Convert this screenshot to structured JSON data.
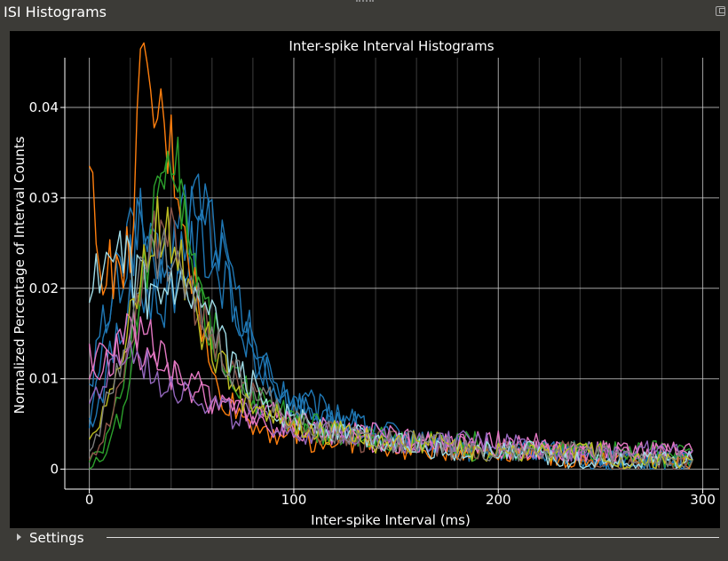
{
  "window": {
    "title": "ISI Histograms"
  },
  "settings": {
    "label": "Settings"
  },
  "chart_data": {
    "type": "line",
    "title": "Inter-spike Interval Histograms",
    "xlabel": "Inter-spike Interval (ms)",
    "ylabel": "Normalized Percentage of Interval Counts",
    "xlim": [
      -12,
      308
    ],
    "ylim": [
      -0.0022,
      0.0455
    ],
    "x_ticks": [
      0,
      100,
      200,
      300
    ],
    "y_ticks": [
      0,
      0.01,
      0.02,
      0.03,
      0.04
    ],
    "x_tick_labels": [
      "0",
      "100",
      "200",
      "300"
    ],
    "y_tick_labels": [
      "0",
      "0.01",
      "0.02",
      "0.03",
      "0.04"
    ],
    "grid": true,
    "legend": "none",
    "x": [
      0,
      5,
      10,
      15,
      20,
      25,
      30,
      35,
      40,
      45,
      50,
      55,
      60,
      65,
      70,
      75,
      80,
      85,
      90,
      95,
      100,
      110,
      120,
      130,
      140,
      150,
      160,
      170,
      180,
      190,
      200,
      210,
      220,
      230,
      240,
      250,
      260,
      270,
      280,
      290,
      295
    ],
    "series": [
      {
        "color": "#1f77b4",
        "values": [
          0.006,
          0.01,
          0.018,
          0.021,
          0.024,
          0.028,
          0.024,
          0.022,
          0.025,
          0.028,
          0.03,
          0.031,
          0.028,
          0.025,
          0.02,
          0.017,
          0.014,
          0.012,
          0.01,
          0.009,
          0.008,
          0.007,
          0.006,
          0.005,
          0.004,
          0.004,
          0.003,
          0.003,
          0.003,
          0.002,
          0.002,
          0.002,
          0.002,
          0.002,
          0.002,
          0.001,
          0.001,
          0.001,
          0.001,
          0.001,
          0.001
        ]
      },
      {
        "color": "#1f77b4",
        "values": [
          0.008,
          0.014,
          0.019,
          0.022,
          0.026,
          0.027,
          0.025,
          0.021,
          0.023,
          0.026,
          0.029,
          0.029,
          0.026,
          0.023,
          0.019,
          0.016,
          0.013,
          0.011,
          0.009,
          0.008,
          0.007,
          0.006,
          0.006,
          0.005,
          0.004,
          0.003,
          0.003,
          0.003,
          0.002,
          0.002,
          0.002,
          0.002,
          0.002,
          0.002,
          0.001,
          0.001,
          0.001,
          0.001,
          0.001,
          0.001,
          0.001
        ]
      },
      {
        "color": "#1f77b4",
        "values": [
          0.005,
          0.008,
          0.012,
          0.015,
          0.018,
          0.02,
          0.019,
          0.018,
          0.02,
          0.022,
          0.024,
          0.025,
          0.023,
          0.021,
          0.018,
          0.015,
          0.013,
          0.011,
          0.009,
          0.008,
          0.007,
          0.006,
          0.005,
          0.004,
          0.004,
          0.003,
          0.003,
          0.003,
          0.002,
          0.002,
          0.002,
          0.002,
          0.002,
          0.002,
          0.001,
          0.001,
          0.001,
          0.001,
          0.001,
          0.001,
          0.001
        ]
      },
      {
        "color": "#ff7f0e",
        "values": [
          0.033,
          0.022,
          0.023,
          0.02,
          0.025,
          0.042,
          0.04,
          0.038,
          0.035,
          0.03,
          0.022,
          0.016,
          0.01,
          0.008,
          0.007,
          0.006,
          0.005,
          0.005,
          0.004,
          0.004,
          0.004,
          0.003,
          0.003,
          0.003,
          0.003,
          0.002,
          0.002,
          0.002,
          0.002,
          0.002,
          0.002,
          0.002,
          0.002,
          0.001,
          0.001,
          0.001,
          0.001,
          0.001,
          0.001,
          0.001,
          0.001
        ]
      },
      {
        "color": "#2ca02c",
        "values": [
          0.001,
          0.002,
          0.004,
          0.008,
          0.014,
          0.02,
          0.026,
          0.033,
          0.036,
          0.031,
          0.025,
          0.02,
          0.016,
          0.013,
          0.011,
          0.009,
          0.008,
          0.007,
          0.006,
          0.006,
          0.005,
          0.005,
          0.004,
          0.004,
          0.004,
          0.003,
          0.003,
          0.003,
          0.003,
          0.003,
          0.002,
          0.002,
          0.002,
          0.002,
          0.002,
          0.002,
          0.002,
          0.002,
          0.002,
          0.002,
          0.002
        ]
      },
      {
        "color": "#2ca02c",
        "values": [
          0.0,
          0.001,
          0.003,
          0.006,
          0.011,
          0.018,
          0.024,
          0.029,
          0.033,
          0.029,
          0.023,
          0.018,
          0.015,
          0.012,
          0.01,
          0.009,
          0.008,
          0.007,
          0.006,
          0.005,
          0.005,
          0.004,
          0.004,
          0.004,
          0.003,
          0.003,
          0.003,
          0.003,
          0.002,
          0.002,
          0.002,
          0.002,
          0.002,
          0.002,
          0.002,
          0.002,
          0.002,
          0.001,
          0.001,
          0.001,
          0.001
        ]
      },
      {
        "color": "#8c564b",
        "values": [
          0.002,
          0.003,
          0.005,
          0.009,
          0.014,
          0.02,
          0.025,
          0.028,
          0.027,
          0.024,
          0.02,
          0.017,
          0.014,
          0.012,
          0.01,
          0.009,
          0.008,
          0.007,
          0.006,
          0.005,
          0.005,
          0.004,
          0.004,
          0.003,
          0.003,
          0.003,
          0.003,
          0.002,
          0.002,
          0.002,
          0.002,
          0.002,
          0.002,
          0.002,
          0.002,
          0.001,
          0.001,
          0.001,
          0.001,
          0.001,
          0.001
        ]
      },
      {
        "color": "#e377c2",
        "values": [
          0.012,
          0.015,
          0.014,
          0.013,
          0.015,
          0.016,
          0.014,
          0.012,
          0.011,
          0.01,
          0.009,
          0.009,
          0.008,
          0.008,
          0.007,
          0.007,
          0.006,
          0.006,
          0.006,
          0.005,
          0.005,
          0.005,
          0.004,
          0.004,
          0.004,
          0.004,
          0.003,
          0.003,
          0.003,
          0.003,
          0.003,
          0.003,
          0.003,
          0.002,
          0.002,
          0.002,
          0.002,
          0.002,
          0.002,
          0.002,
          0.002
        ]
      },
      {
        "color": "#e377c2",
        "values": [
          0.009,
          0.011,
          0.012,
          0.014,
          0.016,
          0.013,
          0.012,
          0.011,
          0.01,
          0.01,
          0.009,
          0.008,
          0.008,
          0.007,
          0.007,
          0.006,
          0.006,
          0.005,
          0.005,
          0.005,
          0.004,
          0.004,
          0.004,
          0.004,
          0.003,
          0.003,
          0.003,
          0.003,
          0.003,
          0.003,
          0.002,
          0.002,
          0.002,
          0.002,
          0.002,
          0.002,
          0.002,
          0.002,
          0.002,
          0.002,
          0.002
        ]
      },
      {
        "color": "#9467bd",
        "values": [
          0.007,
          0.009,
          0.01,
          0.012,
          0.013,
          0.012,
          0.011,
          0.01,
          0.01,
          0.009,
          0.009,
          0.008,
          0.007,
          0.007,
          0.006,
          0.006,
          0.006,
          0.005,
          0.005,
          0.005,
          0.004,
          0.004,
          0.004,
          0.004,
          0.004,
          0.003,
          0.003,
          0.003,
          0.003,
          0.003,
          0.003,
          0.003,
          0.002,
          0.002,
          0.002,
          0.002,
          0.002,
          0.002,
          0.002,
          0.002,
          0.002
        ]
      },
      {
        "color": "#9edae5",
        "values": [
          0.019,
          0.022,
          0.021,
          0.023,
          0.022,
          0.02,
          0.019,
          0.018,
          0.02,
          0.019,
          0.018,
          0.017,
          0.016,
          0.014,
          0.012,
          0.01,
          0.009,
          0.008,
          0.007,
          0.006,
          0.006,
          0.005,
          0.004,
          0.004,
          0.003,
          0.003,
          0.003,
          0.002,
          0.002,
          0.002,
          0.002,
          0.002,
          0.002,
          0.001,
          0.001,
          0.001,
          0.001,
          0.001,
          0.001,
          0.001,
          0.001
        ]
      },
      {
        "color": "#bcbd22",
        "values": [
          0.004,
          0.006,
          0.008,
          0.011,
          0.016,
          0.021,
          0.025,
          0.027,
          0.026,
          0.023,
          0.019,
          0.016,
          0.013,
          0.011,
          0.01,
          0.008,
          0.007,
          0.007,
          0.006,
          0.005,
          0.005,
          0.004,
          0.004,
          0.004,
          0.003,
          0.003,
          0.003,
          0.003,
          0.002,
          0.002,
          0.002,
          0.002,
          0.002,
          0.002,
          0.002,
          0.002,
          0.001,
          0.001,
          0.001,
          0.001,
          0.001
        ]
      },
      {
        "color": "#7f7f7f",
        "values": [
          0.003,
          0.005,
          0.008,
          0.012,
          0.017,
          0.021,
          0.023,
          0.024,
          0.023,
          0.021,
          0.019,
          0.017,
          0.015,
          0.013,
          0.011,
          0.01,
          0.009,
          0.008,
          0.007,
          0.006,
          0.005,
          0.005,
          0.004,
          0.004,
          0.003,
          0.003,
          0.003,
          0.003,
          0.002,
          0.002,
          0.002,
          0.002,
          0.002,
          0.002,
          0.002,
          0.002,
          0.001,
          0.001,
          0.001,
          0.001,
          0.001
        ]
      }
    ]
  }
}
